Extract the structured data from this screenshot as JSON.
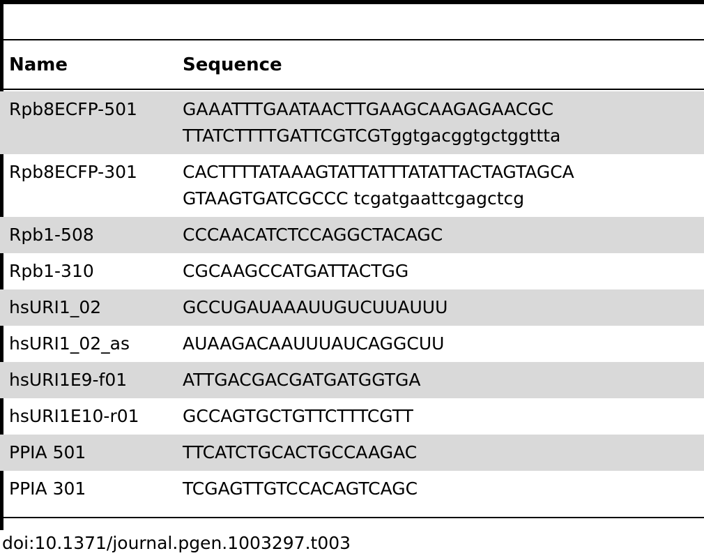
{
  "table": {
    "headers": {
      "name": "Name",
      "sequence": "Sequence"
    },
    "rows": [
      {
        "name": "Rpb8ECFP-501",
        "seq_line1": "GAAATTTGAATAACTTGAAGCAAGAGAACGC",
        "seq_line2": "TTATCTTTTGATTCGTCGTggtgacggtgctggttta"
      },
      {
        "name": "Rpb8ECFP-301",
        "seq_line1": "CACTTTTATAAAGTATTATTTATATTACTAGTAGCA",
        "seq_line2": "GTAAGTGATCGCCC tcgatgaattcgagctcg"
      },
      {
        "name": "Rpb1-508",
        "seq_line1": "CCCAACATCTCCAGGCTACAGC"
      },
      {
        "name": "Rpb1-310",
        "seq_line1": "CGCAAGCCATGATTACTGG"
      },
      {
        "name": "hsURI1_02",
        "seq_line1": "GCCUGAUAAAUUGUCUUAUUU"
      },
      {
        "name": "hsURI1_02_as",
        "seq_line1": "AUAAGACAAUUUAUCAGGCUU"
      },
      {
        "name": "hsURI1E9-f01",
        "seq_line1": "ATTGACGACGATGATGGTGA"
      },
      {
        "name": "hsURI1E10-r01",
        "seq_line1": "GCCAGTGCTGTTCTTTCGTT"
      },
      {
        "name": "PPIA 501",
        "seq_line1": "TTCATCTGCACTGCCAAGAC"
      },
      {
        "name": "PPIA 301",
        "seq_line1": "TCGAGTTGTCCACAGTCAGC"
      }
    ]
  },
  "caption": "doi:10.1371/journal.pgen.1003297.t003"
}
